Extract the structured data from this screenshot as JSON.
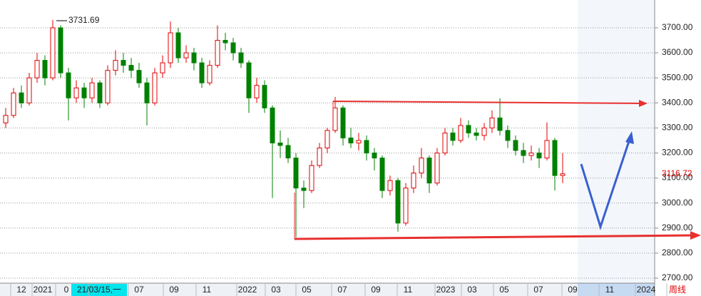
{
  "chart_data": {
    "type": "candlestick",
    "ohlc": [
      [
        3320,
        3380,
        3300,
        3350
      ],
      [
        3350,
        3460,
        3340,
        3440
      ],
      [
        3440,
        3470,
        3380,
        3400
      ],
      [
        3400,
        3520,
        3390,
        3500
      ],
      [
        3500,
        3600,
        3480,
        3570
      ],
      [
        3570,
        3590,
        3470,
        3500
      ],
      [
        3500,
        3731.69,
        3490,
        3700
      ],
      [
        3700,
        3710,
        3500,
        3520
      ],
      [
        3520,
        3540,
        3330,
        3420
      ],
      [
        3420,
        3490,
        3400,
        3460
      ],
      [
        3460,
        3480,
        3380,
        3420
      ],
      [
        3420,
        3500,
        3400,
        3480
      ],
      [
        3480,
        3490,
        3380,
        3400
      ],
      [
        3400,
        3550,
        3390,
        3530
      ],
      [
        3530,
        3610,
        3510,
        3570
      ],
      [
        3570,
        3600,
        3520,
        3550
      ],
      [
        3550,
        3580,
        3500,
        3530
      ],
      [
        3530,
        3560,
        3460,
        3480
      ],
      [
        3480,
        3500,
        3310,
        3400
      ],
      [
        3400,
        3540,
        3390,
        3520
      ],
      [
        3520,
        3590,
        3500,
        3560
      ],
      [
        3560,
        3725,
        3540,
        3680
      ],
      [
        3680,
        3700,
        3560,
        3580
      ],
      [
        3580,
        3630,
        3560,
        3600
      ],
      [
        3600,
        3620,
        3530,
        3560
      ],
      [
        3560,
        3580,
        3460,
        3480
      ],
      [
        3480,
        3570,
        3470,
        3550
      ],
      [
        3550,
        3710,
        3540,
        3650
      ],
      [
        3650,
        3680,
        3610,
        3640
      ],
      [
        3640,
        3660,
        3570,
        3600
      ],
      [
        3600,
        3620,
        3540,
        3560
      ],
      [
        3560,
        3570,
        3360,
        3420
      ],
      [
        3420,
        3500,
        3400,
        3470
      ],
      [
        3470,
        3490,
        3360,
        3380
      ],
      [
        3380,
        3390,
        3020,
        3240
      ],
      [
        3240,
        3290,
        3180,
        3230
      ],
      [
        3230,
        3260,
        3160,
        3180
      ],
      [
        3180,
        3200,
        2863,
        3060
      ],
      [
        3060,
        3090,
        2980,
        3050
      ],
      [
        3050,
        3170,
        3040,
        3150
      ],
      [
        3150,
        3240,
        3140,
        3220
      ],
      [
        3220,
        3300,
        3200,
        3290
      ],
      [
        3290,
        3424,
        3280,
        3380
      ],
      [
        3380,
        3390,
        3230,
        3260
      ],
      [
        3260,
        3300,
        3220,
        3240
      ],
      [
        3240,
        3280,
        3210,
        3250
      ],
      [
        3250,
        3270,
        3170,
        3200
      ],
      [
        3200,
        3220,
        3130,
        3180
      ],
      [
        3180,
        3190,
        3020,
        3050
      ],
      [
        3050,
        3110,
        3030,
        3090
      ],
      [
        3090,
        3100,
        2886,
        2920
      ],
      [
        2920,
        3080,
        2910,
        3060
      ],
      [
        3060,
        3150,
        3040,
        3120
      ],
      [
        3120,
        3220,
        3100,
        3180
      ],
      [
        3180,
        3190,
        3040,
        3080
      ],
      [
        3080,
        3220,
        3070,
        3200
      ],
      [
        3200,
        3300,
        3190,
        3280
      ],
      [
        3280,
        3300,
        3230,
        3250
      ],
      [
        3250,
        3340,
        3240,
        3310
      ],
      [
        3310,
        3330,
        3260,
        3280
      ],
      [
        3280,
        3300,
        3250,
        3270
      ],
      [
        3270,
        3320,
        3250,
        3300
      ],
      [
        3300,
        3370,
        3280,
        3340
      ],
      [
        3340,
        3418,
        3270,
        3290
      ],
      [
        3290,
        3310,
        3220,
        3250
      ],
      [
        3250,
        3270,
        3190,
        3210
      ],
      [
        3210,
        3240,
        3160,
        3190
      ],
      [
        3190,
        3230,
        3170,
        3200
      ],
      [
        3200,
        3220,
        3140,
        3180
      ],
      [
        3180,
        3322,
        3170,
        3250
      ],
      [
        3250,
        3260,
        3050,
        3110
      ],
      [
        3110,
        3200,
        3080,
        3116.72
      ]
    ],
    "up_color": "#e00000",
    "down_color": "#008000",
    "ylim": [
      2680,
      3811
    ],
    "yticks": [
      {
        "value": 2700,
        "label": "2700.00"
      },
      {
        "value": 2800,
        "label": "2800.00"
      },
      {
        "value": 2900,
        "label": "2900.00"
      },
      {
        "value": 3000,
        "label": "3000.00"
      },
      {
        "value": 3100,
        "label": "3100.00"
      },
      {
        "value": 3200,
        "label": "3200.00"
      },
      {
        "value": 3300,
        "label": "3300.00"
      },
      {
        "value": 3400,
        "label": "3400.00"
      },
      {
        "value": 3500,
        "label": "3500.00"
      },
      {
        "value": 3600,
        "label": "3600.00"
      },
      {
        "value": 3700,
        "label": "3700.00"
      }
    ],
    "grid": true,
    "x_labels": [
      "12",
      "2021",
      "0",
      "21/03/15,一",
      "07",
      "09",
      "11",
      "2022",
      "03",
      "05",
      "07",
      "09",
      "11",
      "2023",
      "03",
      "05",
      "07",
      "09",
      "11",
      "2024",
      "周线"
    ],
    "high_label": 3731.69,
    "last_price": 3116.72
  }
}
